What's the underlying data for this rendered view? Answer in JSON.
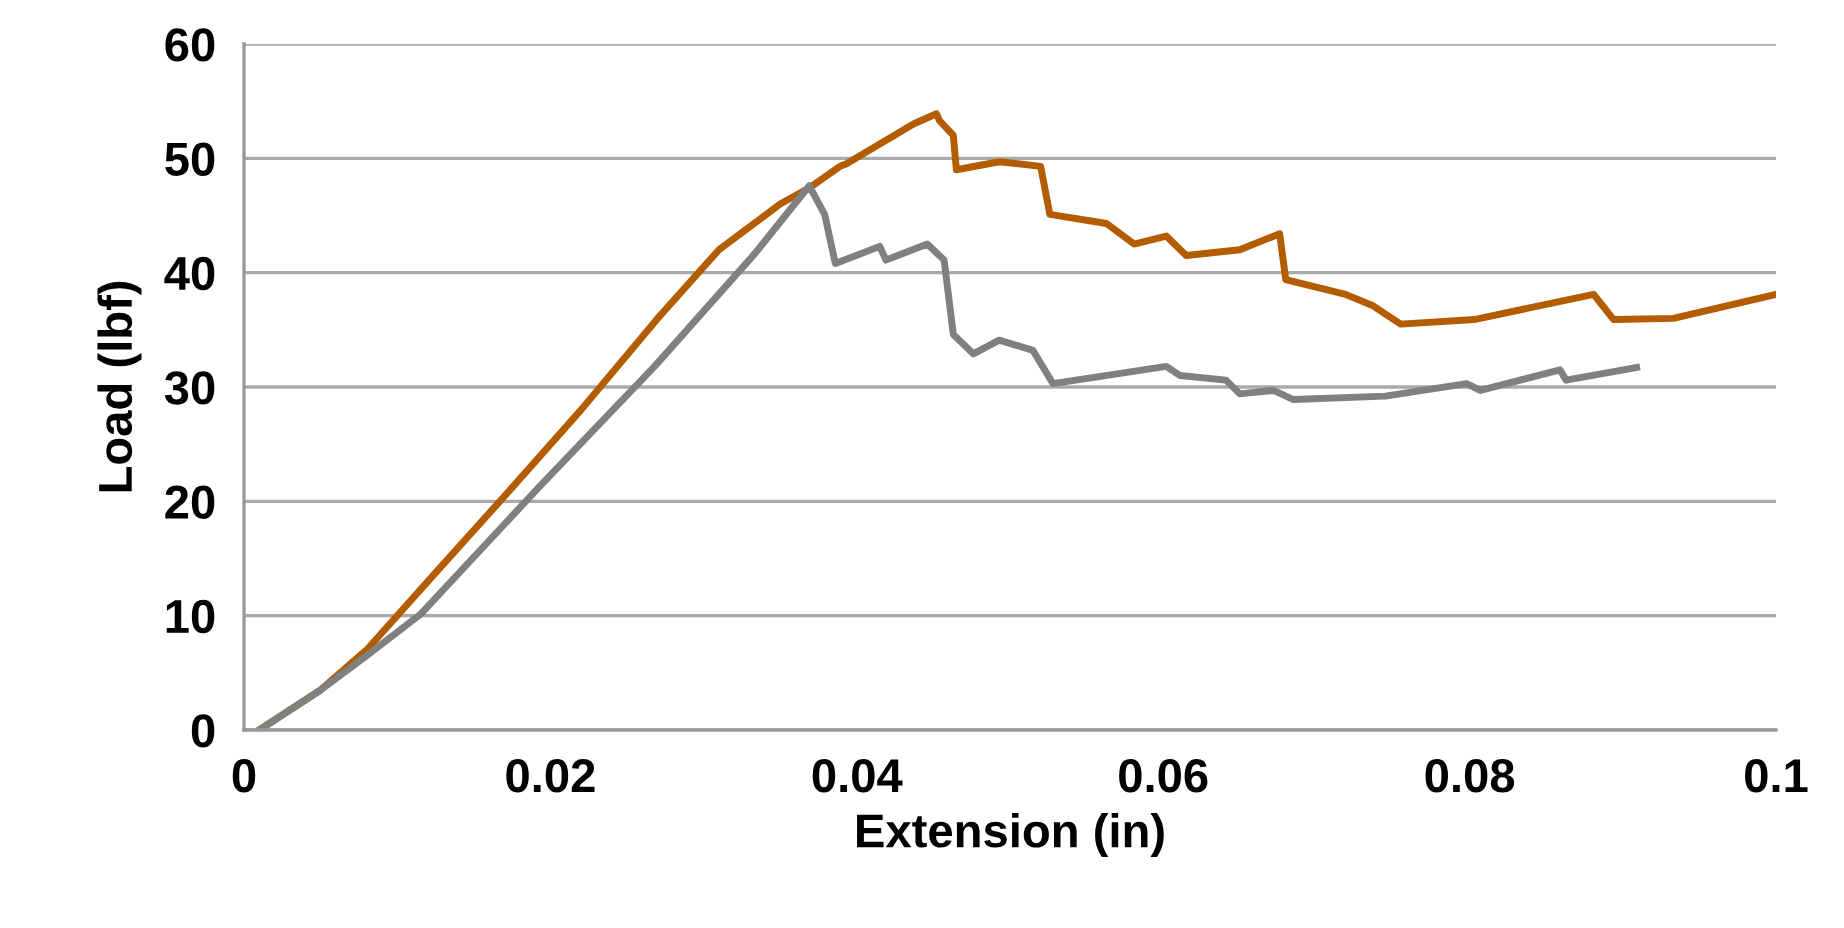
{
  "chart_data": {
    "type": "line",
    "xlabel": "Extension (in)",
    "ylabel": "Load (lbf)",
    "xlim": [
      0,
      0.1
    ],
    "xticks": [
      0,
      0.02,
      0.04,
      0.06,
      0.08,
      0.1
    ],
    "ylim": [
      0,
      60
    ],
    "yticks": [
      0,
      10,
      20,
      30,
      40,
      50,
      60
    ],
    "grid": "y",
    "marker": "none",
    "line_style": "solid",
    "series": [
      {
        "color": "#b35c00",
        "x": [
          0.001,
          0.005,
          0.008,
          0.012,
          0.0167,
          0.022,
          0.027,
          0.031,
          0.035,
          0.037,
          0.0389,
          0.0393,
          0.0437,
          0.0452,
          0.0454,
          0.0463,
          0.0465,
          0.0493,
          0.052,
          0.0526,
          0.0563,
          0.0581,
          0.0602,
          0.0615,
          0.065,
          0.0676,
          0.068,
          0.0719,
          0.0737,
          0.0755,
          0.0803,
          0.0881,
          0.0894,
          0.0933,
          0.1
        ],
        "values": [
          0,
          3.5,
          7,
          13,
          20,
          28,
          36,
          42,
          46,
          47.5,
          49.3,
          49.5,
          53,
          53.9,
          53.3,
          52,
          49,
          49.7,
          49.3,
          45.1,
          44.3,
          42.5,
          43.2,
          41.5,
          42,
          43.4,
          39.4,
          38.1,
          37.1,
          35.5,
          35.9,
          38.1,
          35.9,
          36,
          38.1
        ]
      },
      {
        "color": "#808080",
        "x": [
          0.001,
          0.005,
          0.008,
          0.0115,
          0.0193,
          0.0268,
          0.0333,
          0.0369,
          0.0379,
          0.0386,
          0.0415,
          0.0419,
          0.0446,
          0.0457,
          0.0463,
          0.0476,
          0.0493,
          0.0515,
          0.0528,
          0.0602,
          0.0611,
          0.0641,
          0.065,
          0.0672,
          0.0685,
          0.0745,
          0.0798,
          0.0807,
          0.0859,
          0.0863,
          0.0909
        ],
        "values": [
          0,
          3.5,
          6.5,
          10.1,
          21.3,
          31.8,
          41.6,
          47.6,
          45.1,
          40.8,
          42.3,
          41.1,
          42.5,
          41.1,
          34.6,
          32.9,
          34.1,
          33.2,
          30.3,
          31.8,
          31,
          30.6,
          29.4,
          29.7,
          28.9,
          29.2,
          30.3,
          29.7,
          31.5,
          30.6,
          31.7
        ]
      }
    ]
  }
}
